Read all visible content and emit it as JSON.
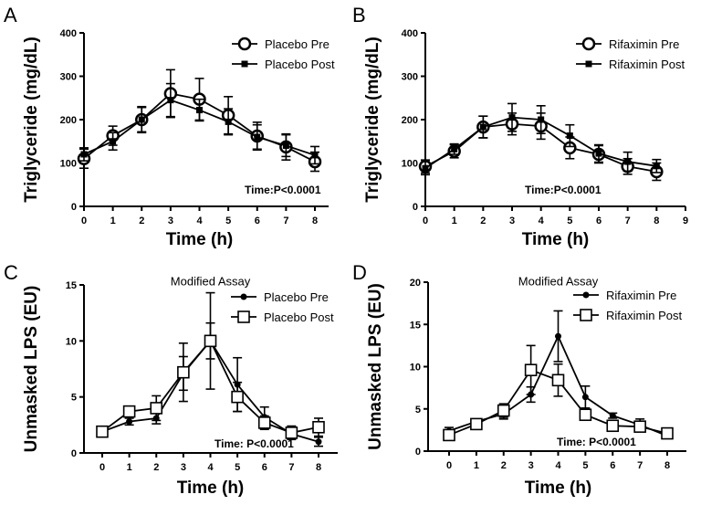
{
  "chart_data": [
    {
      "panel": "A",
      "type": "line",
      "title": "",
      "xlabel": "Time (h)",
      "ylabel": "Triglyceride (mg/dL)",
      "xlim": [
        0,
        8.3
      ],
      "ylim": [
        0,
        400
      ],
      "xticks": [
        0,
        1,
        2,
        3,
        4,
        5,
        6,
        7,
        8
      ],
      "yticks": [
        0,
        100,
        200,
        300,
        400
      ],
      "annotation": "Time:P<0.0001",
      "legend_position": "top-right",
      "x": [
        0,
        1,
        2,
        3,
        4,
        5,
        6,
        7,
        8
      ],
      "series": [
        {
          "name": "Placebo Pre",
          "marker": "open-circle",
          "values": [
            110,
            163,
            200,
            260,
            247,
            210,
            162,
            137,
            103
          ],
          "err": [
            22,
            22,
            30,
            55,
            48,
            43,
            32,
            30,
            22
          ]
        },
        {
          "name": "Placebo Post",
          "marker": "filled-square",
          "values": [
            120,
            150,
            200,
            245,
            222,
            195,
            160,
            140,
            118
          ],
          "err": [
            15,
            20,
            28,
            38,
            25,
            30,
            28,
            25,
            20
          ]
        }
      ]
    },
    {
      "panel": "B",
      "type": "line",
      "title": "",
      "xlabel": "Time (h)",
      "ylabel": "Triglyceride (mg/dL)",
      "xlim": [
        0,
        9
      ],
      "ylim": [
        0,
        400
      ],
      "xticks": [
        0,
        1,
        2,
        3,
        4,
        5,
        6,
        7,
        8,
        9
      ],
      "yticks": [
        0,
        100,
        200,
        300,
        400
      ],
      "annotation": "Time:P<0.0001",
      "legend_position": "top-right",
      "x": [
        0,
        1,
        2,
        3,
        4,
        5,
        6,
        7,
        8
      ],
      "series": [
        {
          "name": "Rifaximin Pre",
          "marker": "open-circle",
          "values": [
            92,
            127,
            183,
            190,
            185,
            135,
            120,
            92,
            80
          ],
          "err": [
            15,
            15,
            25,
            25,
            30,
            25,
            20,
            18,
            20
          ]
        },
        {
          "name": "Rifaximin Post",
          "marker": "filled-square",
          "values": [
            88,
            132,
            183,
            205,
            200,
            163,
            122,
            103,
            93
          ],
          "err": [
            15,
            12,
            25,
            32,
            32,
            25,
            20,
            22,
            15
          ]
        }
      ]
    },
    {
      "panel": "C",
      "type": "line",
      "title": "Modified Assay",
      "xlabel": "Time (h)",
      "ylabel": "Unmasked LPS (EU)",
      "xlim": [
        -0.6,
        8.6
      ],
      "ylim": [
        0,
        15
      ],
      "xticks": [
        0,
        1,
        2,
        3,
        4,
        5,
        6,
        7,
        8
      ],
      "yticks": [
        0,
        5,
        10,
        15
      ],
      "annotation": "Time: P<0.0001",
      "legend_position": "top-right",
      "x": [
        0,
        1,
        2,
        3,
        4,
        5,
        6,
        7,
        8
      ],
      "series": [
        {
          "name": "Placebo Pre",
          "marker": "filled-circle",
          "values": [
            1.9,
            2.8,
            3.1,
            7.1,
            10.0,
            6.1,
            3.2,
            1.7,
            1.0
          ],
          "err": [
            0.2,
            0.3,
            0.5,
            1.5,
            1.6,
            2.4,
            0.9,
            0.4,
            0.4
          ]
        },
        {
          "name": "Placebo Post",
          "marker": "open-square",
          "values": [
            1.9,
            3.7,
            4.0,
            7.2,
            10.0,
            5.0,
            2.7,
            1.8,
            2.3
          ],
          "err": [
            0.2,
            0.3,
            1.1,
            2.6,
            4.3,
            1.3,
            0.6,
            0.6,
            0.8
          ]
        }
      ]
    },
    {
      "panel": "D",
      "type": "line",
      "title": "Modified Assay",
      "xlabel": "Time (h)",
      "ylabel": "Unmasked LPS (EU)",
      "xlim": [
        -0.6,
        8.6
      ],
      "ylim": [
        0,
        20
      ],
      "xticks": [
        0,
        1,
        2,
        3,
        4,
        5,
        6,
        7,
        8
      ],
      "yticks": [
        0,
        5,
        10,
        15,
        20
      ],
      "annotation": "Time: P<0.0001",
      "legend_position": "top-right",
      "x": [
        0,
        1,
        2,
        3,
        4,
        5,
        6,
        7,
        8
      ],
      "series": [
        {
          "name": "Rifaximin Pre",
          "marker": "filled-circle",
          "values": [
            2.4,
            3.5,
            4.4,
            6.7,
            13.6,
            6.4,
            4.2,
            3.1,
            1.8
          ],
          "err": [
            0.4,
            0.3,
            0.6,
            0.9,
            3.0,
            1.3,
            0.3,
            0.7,
            0.2
          ]
        },
        {
          "name": "Rifaximin Post",
          "marker": "open-square",
          "values": [
            1.9,
            3.2,
            4.8,
            9.6,
            8.4,
            4.3,
            3.0,
            2.9,
            2.1
          ],
          "err": [
            0.4,
            0.3,
            0.8,
            2.9,
            1.9,
            0.5,
            0.3,
            0.3,
            0.3
          ]
        }
      ]
    }
  ]
}
